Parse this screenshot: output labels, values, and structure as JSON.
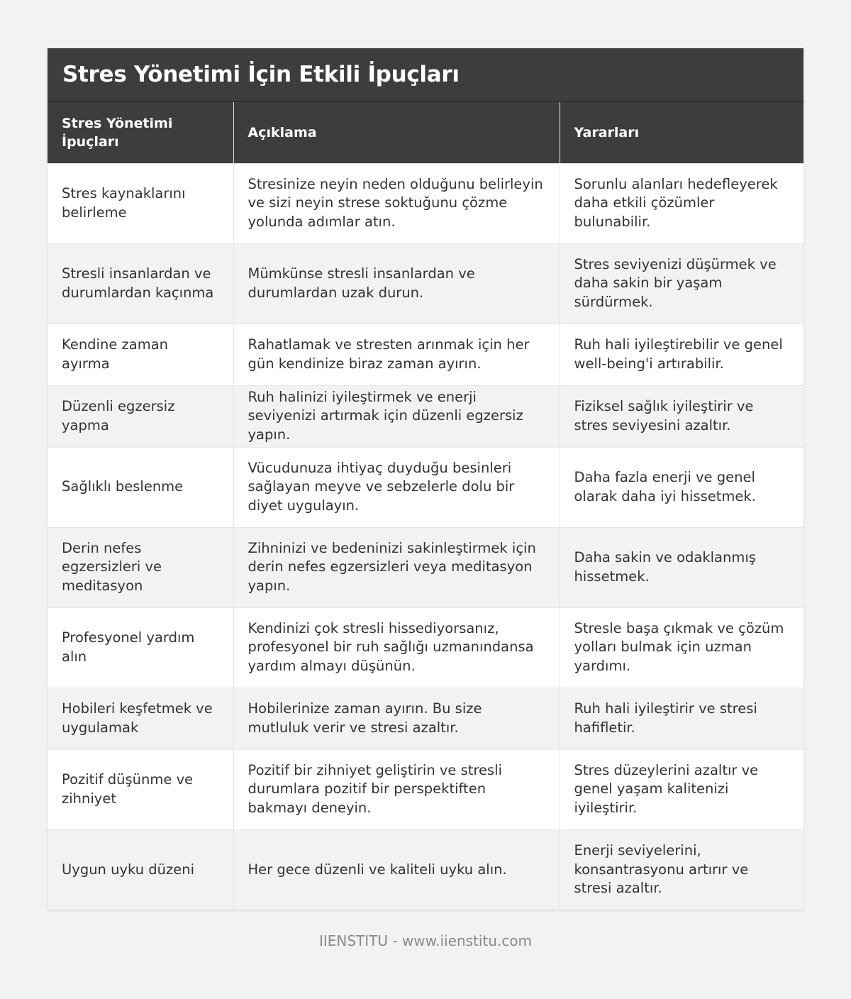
{
  "title": "Stres Yönetimi İçin Etkili İpuçları",
  "headers": {
    "col1": "Stres Yönetimi İpuçları",
    "col2": "Açıklama",
    "col3": "Yararları"
  },
  "rows": [
    {
      "tip": "Stres kaynaklarını belirleme",
      "description": "Stresinize neyin neden olduğunu belirleyin ve sizi neyin strese soktuğunu çözme yolunda adımlar atın.",
      "benefits": "Sorunlu alanları hedefleyerek daha etkili çözümler bulunabilir."
    },
    {
      "tip": "Stresli insanlardan ve durumlardan kaçınma",
      "description": "Mümkünse stresli insanlardan ve durumlardan uzak durun.",
      "benefits": "Stres seviyenizi düşürmek ve daha sakin bir yaşam sürdürmek."
    },
    {
      "tip": "Kendine zaman ayırma",
      "description": "Rahatlamak ve stresten arınmak için her gün kendinize biraz zaman ayırın.",
      "benefits": "Ruh hali iyileştirebilir ve genel well-being'i artırabilir."
    },
    {
      "tip": "Düzenli egzersiz yapma",
      "description": "Ruh halinizi iyileştirmek ve enerji seviyenizi artırmak için düzenli egzersiz yapın.",
      "benefits": "Fiziksel sağlık iyileştirir ve stres seviyesini azaltır."
    },
    {
      "tip": "Sağlıklı beslenme",
      "description": "Vücudunuza ihtiyaç duyduğu besinleri sağlayan meyve ve sebzelerle dolu bir diyet uygulayın.",
      "benefits": "Daha fazla enerji ve genel olarak daha iyi hissetmek."
    },
    {
      "tip": "Derin nefes egzersizleri ve meditasyon",
      "description": "Zihninizi ve bedeninizi sakinleştirmek için derin nefes egzersizleri veya meditasyon yapın.",
      "benefits": "Daha sakin ve odaklanmış hissetmek."
    },
    {
      "tip": "Profesyonel yardım alın",
      "description": "Kendinizi çok stresli hissediyorsanız, profesyonel bir ruh sağlığı uzmanındansa yardım almayı düşünün.",
      "benefits": "Stresle başa çıkmak ve çözüm yolları bulmak için uzman yardımı."
    },
    {
      "tip": "Hobileri keşfetmek ve uygulamak",
      "description": "Hobilerinize zaman ayırın. Bu size mutluluk verir ve stresi azaltır.",
      "benefits": "Ruh hali iyileştirir ve stresi hafifletir."
    },
    {
      "tip": "Pozitif düşünme ve zihniyet",
      "description": "Pozitif bir zihniyet geliştirin ve stresli durumlara pozitif bir perspektiften bakmayı deneyin.",
      "benefits": "Stres düzeylerini azaltır ve genel yaşam kalitenizi iyileştirir."
    },
    {
      "tip": "Uygun uyku düzeni",
      "description": "Her gece düzenli ve kaliteli uyku alın.",
      "benefits": "Enerji seviyelerini, konsantrasyonu artırır ve stresi azaltır."
    }
  ],
  "footer": "IIENSTITU - www.iienstitu.com"
}
